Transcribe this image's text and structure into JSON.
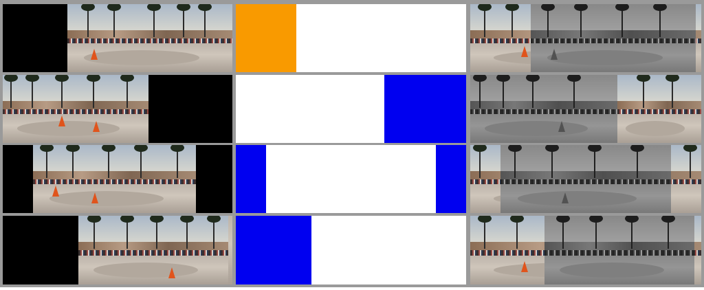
{
  "colors": {
    "orange_mask": "#f99a00",
    "blue_mask": "#0000f0",
    "black_fill": "#000000",
    "border": "#9a9a9a"
  },
  "rows": [
    {
      "mask_color": "orange",
      "mask_side": "left"
    },
    {
      "mask_color": "blue",
      "mask_side": "right"
    },
    {
      "mask_color": "blue",
      "mask_side": "both"
    },
    {
      "mask_color": "blue",
      "mask_side": "left"
    }
  ]
}
